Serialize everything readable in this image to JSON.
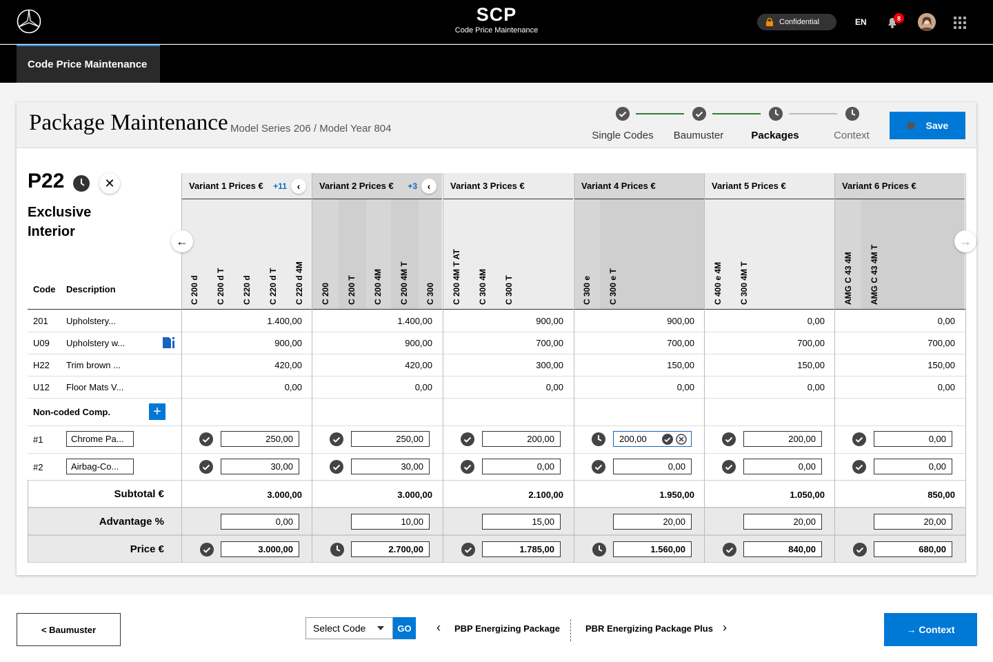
{
  "header": {
    "title": "SCP",
    "subtitle": "Code Price Maintenance",
    "confidential": "Confidential",
    "lang": "EN",
    "notifications": "8"
  },
  "nav": {
    "tab": "Code Price Maintenance"
  },
  "page": {
    "title": "Package Maintenance",
    "subtitle": "Model Series 206 / Model Year 804",
    "save": "Save"
  },
  "steps": [
    "Single Codes",
    "Baumuster",
    "Packages",
    "Context"
  ],
  "package": {
    "code": "P22",
    "name": "Exclusive Interior"
  },
  "table": {
    "code_header": "Code",
    "desc_header": "Description",
    "variants": [
      {
        "title": "Variant 1 Prices €",
        "more": "+11",
        "models": [
          "C 200 d",
          "C 200 d T",
          "C 220 d",
          "C 220 d T",
          "C 220 d 4M"
        ]
      },
      {
        "title": "Variant 2 Prices €",
        "more": "+3",
        "models": [
          "C 200",
          "C 200 T",
          "C 200 4M",
          "C 200 4M T",
          "C 300"
        ]
      },
      {
        "title": "Variant 3 Prices €",
        "more": "",
        "models": [
          "C 200 4M T AT",
          "C 300 4M",
          "C 300 T"
        ]
      },
      {
        "title": "Variant 4 Prices €",
        "more": "",
        "models": [
          "C 300 e",
          "C 300 e T"
        ]
      },
      {
        "title": "Variant 5 Prices €",
        "more": "",
        "models": [
          "C 400 e 4M",
          "C 300 4M T"
        ]
      },
      {
        "title": "Variant 6 Prices €",
        "more": "",
        "models": [
          "AMG C 43 4M",
          "AMG C 43 4M T"
        ]
      }
    ],
    "rows": [
      {
        "code": "201",
        "desc": "Upholstery...",
        "values": [
          "1.400,00",
          "1.400,00",
          "900,00",
          "900,00",
          "0,00",
          "0,00"
        ]
      },
      {
        "code": "U09",
        "desc": "Upholstery w...",
        "values": [
          "900,00",
          "900,00",
          "700,00",
          "700,00",
          "700,00",
          "700,00"
        ]
      },
      {
        "code": "H22",
        "desc": "Trim brown ...",
        "values": [
          "420,00",
          "420,00",
          "300,00",
          "150,00",
          "150,00",
          "150,00"
        ]
      },
      {
        "code": "U12",
        "desc": "Floor Mats V...",
        "values": [
          "0,00",
          "0,00",
          "0,00",
          "0,00",
          "0,00",
          "0,00"
        ]
      }
    ],
    "noncoded_label": "Non-coded Comp.",
    "noncoded": [
      {
        "code": "#1",
        "desc": "Chrome Pa...",
        "values": [
          "250,00",
          "250,00",
          "200,00",
          "200,00",
          "200,00",
          "0,00"
        ]
      },
      {
        "code": "#2",
        "desc": "Airbag-Co...",
        "values": [
          "30,00",
          "30,00",
          "0,00",
          "0,00",
          "0,00",
          "0,00"
        ]
      }
    ],
    "subtotal_label": "Subtotal €",
    "subtotal": [
      "3.000,00",
      "3.000,00",
      "2.100,00",
      "1.950,00",
      "1.050,00",
      "850,00"
    ],
    "advantage_label": "Advantage %",
    "advantage": [
      "0,00",
      "10,00",
      "15,00",
      "20,00",
      "20,00",
      "20,00"
    ],
    "price_label": "Price €",
    "price": [
      "3.000,00",
      "2.700,00",
      "1.785,00",
      "1.560,00",
      "840,00",
      "680,00"
    ]
  },
  "footer": {
    "back": "< Baumuster",
    "select": "Select Code",
    "go": "GO",
    "prev": "PBP Energizing Package",
    "next": "PBR Energizing Package Plus",
    "context": "→ Context"
  }
}
